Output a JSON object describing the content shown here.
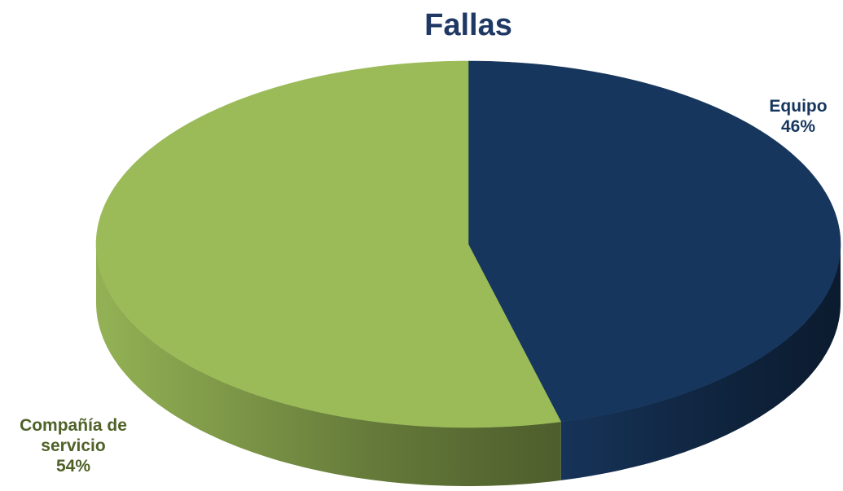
{
  "chart_data": {
    "type": "pie",
    "title": "Fallas",
    "categories": [
      "Equipo",
      "Compañía de servicio"
    ],
    "values": [
      46,
      54
    ],
    "value_labels": [
      "46%",
      "54%"
    ],
    "colors": [
      "#17365d",
      "#9bbb59"
    ]
  }
}
